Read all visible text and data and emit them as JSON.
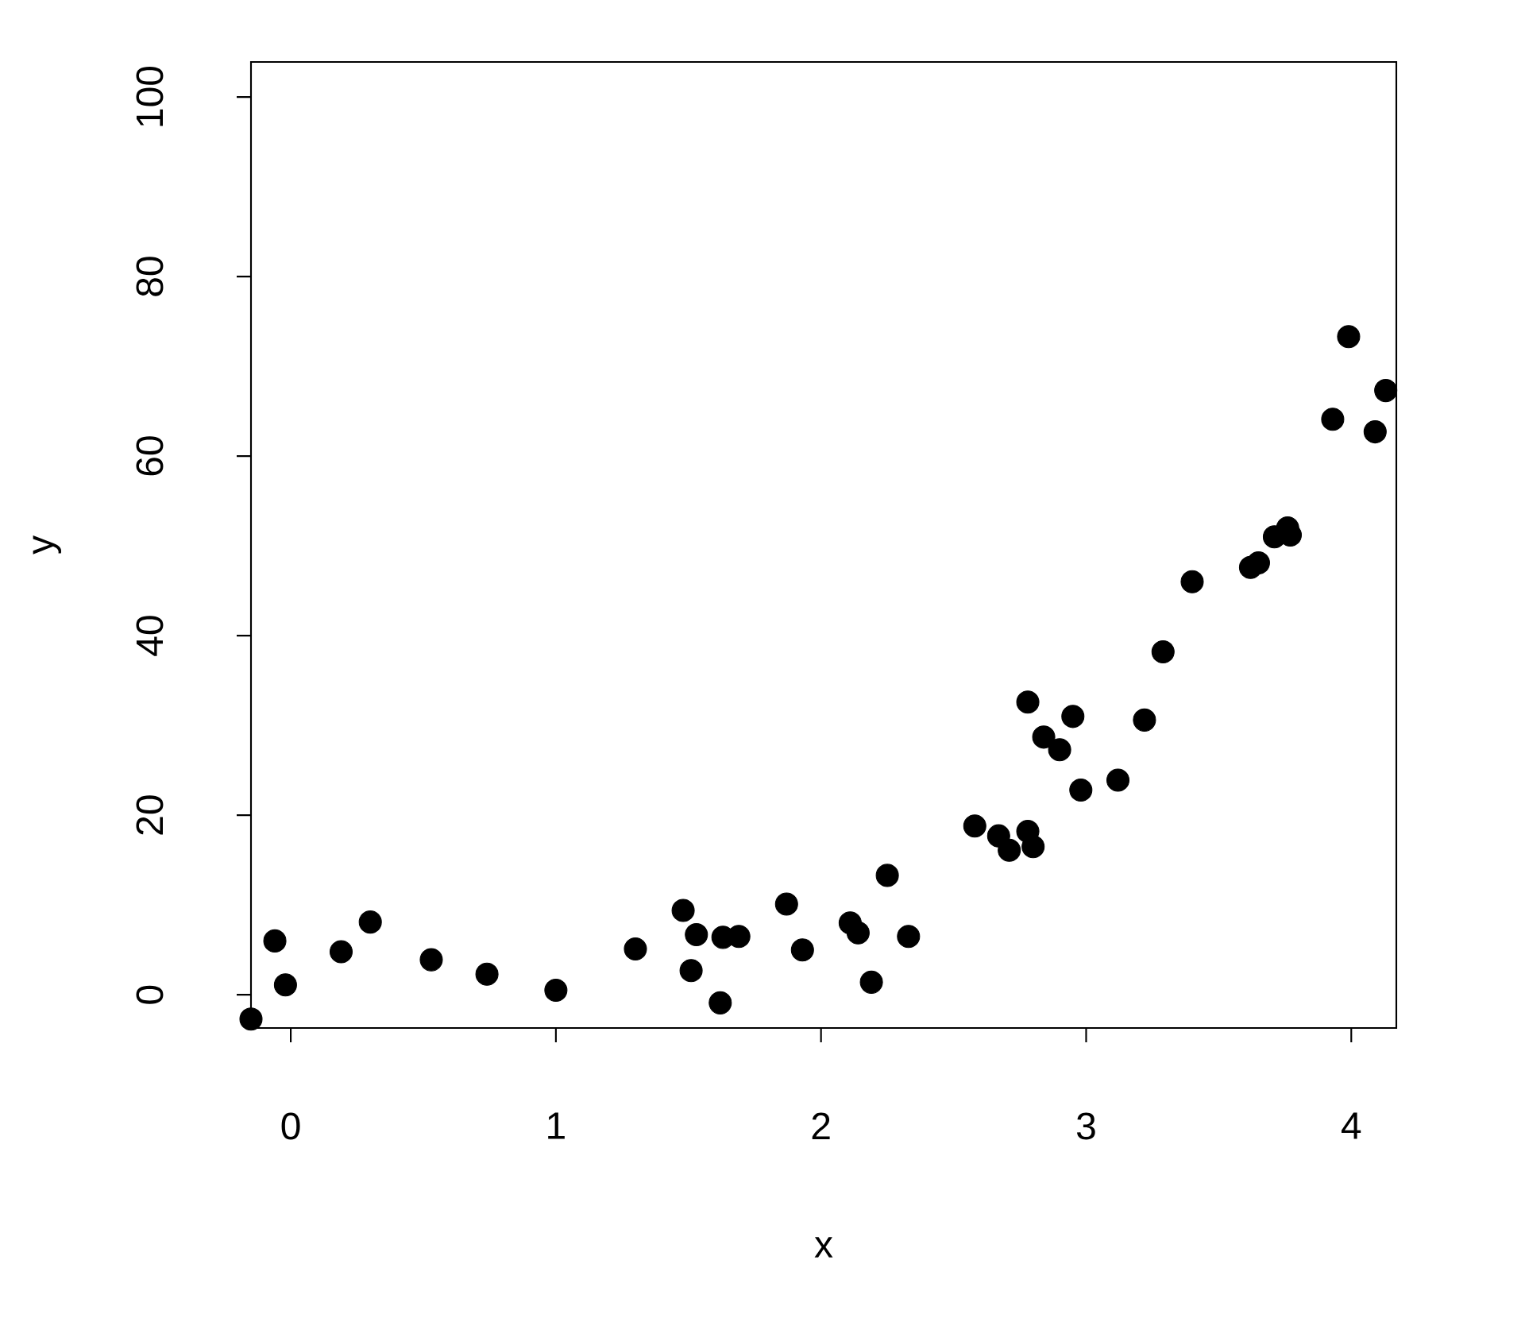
{
  "chart_data": {
    "type": "scatter",
    "xlabel": "x",
    "ylabel": "y",
    "marker": "circle",
    "color": "#000000",
    "xlim": [
      -0.15,
      4.17
    ],
    "ylim": [
      -3.7,
      103.9
    ],
    "xticks": [
      0,
      1,
      2,
      3,
      4
    ],
    "yticks": [
      0,
      20,
      40,
      60,
      80,
      100
    ],
    "x": [
      -0.15,
      -0.06,
      -0.02,
      0.19,
      0.3,
      0.53,
      0.74,
      1.0,
      1.3,
      1.48,
      1.51,
      1.53,
      1.62,
      1.63,
      1.69,
      1.87,
      1.93,
      2.11,
      2.14,
      2.19,
      2.25,
      2.33,
      2.58,
      2.67,
      2.71,
      2.78,
      2.78,
      2.8,
      2.84,
      2.9,
      2.95,
      2.98,
      3.12,
      3.22,
      3.29,
      3.4,
      3.62,
      3.65,
      3.71,
      3.76,
      3.77,
      3.93,
      3.99,
      4.09,
      4.13
    ],
    "values": [
      -2.7,
      6.0,
      1.1,
      4.8,
      8.1,
      3.9,
      2.3,
      0.5,
      5.1,
      9.4,
      2.7,
      6.7,
      -0.9,
      6.4,
      6.5,
      10.1,
      5.0,
      8.0,
      6.9,
      1.4,
      13.3,
      6.5,
      18.8,
      17.7,
      16.1,
      18.2,
      32.6,
      16.5,
      28.7,
      27.3,
      31.0,
      22.8,
      23.9,
      30.6,
      38.2,
      46.0,
      47.6,
      48.1,
      51.0,
      52.0,
      51.2,
      64.1,
      73.3,
      62.7,
      67.3
    ]
  }
}
